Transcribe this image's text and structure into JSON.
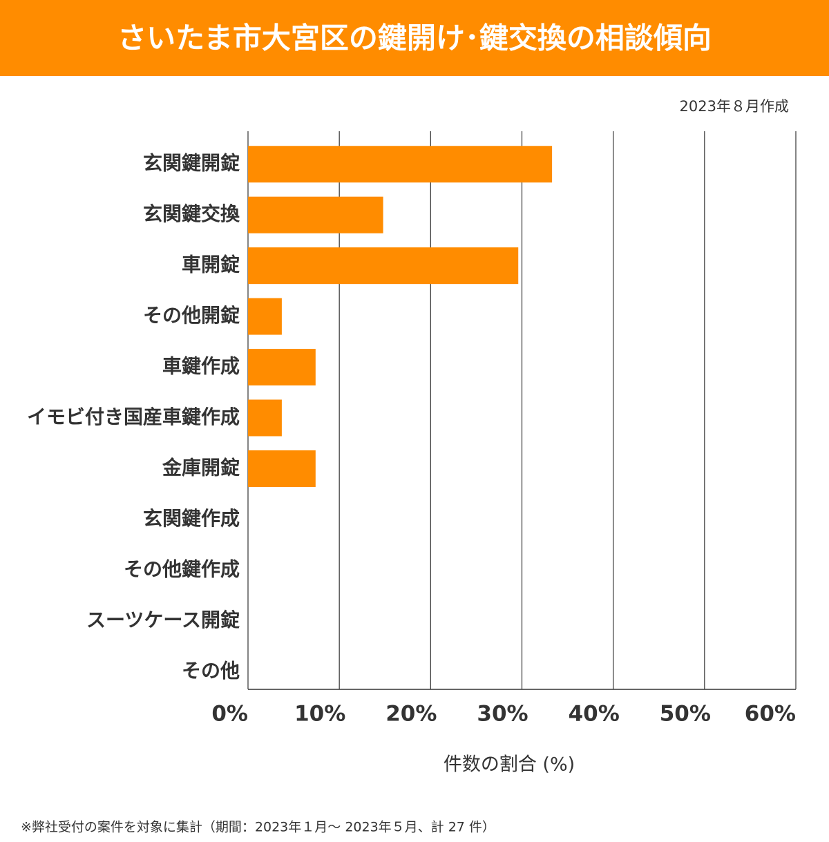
{
  "chart_data": {
    "type": "barh",
    "title": "さいたま市大宮区の鍵開け･鍵交換の相談傾向",
    "note": "2023年８月作成",
    "xlabel": "件数の割合 (%)",
    "footnote": "※弊社受付の案件を対象に集計（期間：2023年１月～ 2023年５月、計 27 件）",
    "categories": [
      "玄関鍵開錠",
      "玄関鍵交換",
      "車開錠",
      "その他開錠",
      "車鍵作成",
      "イモビ付き国産車鍵作成",
      "金庫開錠",
      "玄関鍵作成",
      "その他鍵作成",
      "スーツケース開錠",
      "その他"
    ],
    "values": [
      33.3,
      14.8,
      29.6,
      3.7,
      7.4,
      3.7,
      7.4,
      0,
      0,
      0,
      0
    ],
    "color": "#ff8c00",
    "xlim": [
      0,
      60
    ],
    "xticks": [
      {
        "value": 0,
        "label": "0%"
      },
      {
        "value": 10,
        "label": "10%"
      },
      {
        "value": 20,
        "label": "20%"
      },
      {
        "value": 30,
        "label": "30%"
      },
      {
        "value": 40,
        "label": "40%"
      },
      {
        "value": 50,
        "label": "50%"
      },
      {
        "value": 60,
        "label": "60%"
      }
    ],
    "grid": true
  }
}
